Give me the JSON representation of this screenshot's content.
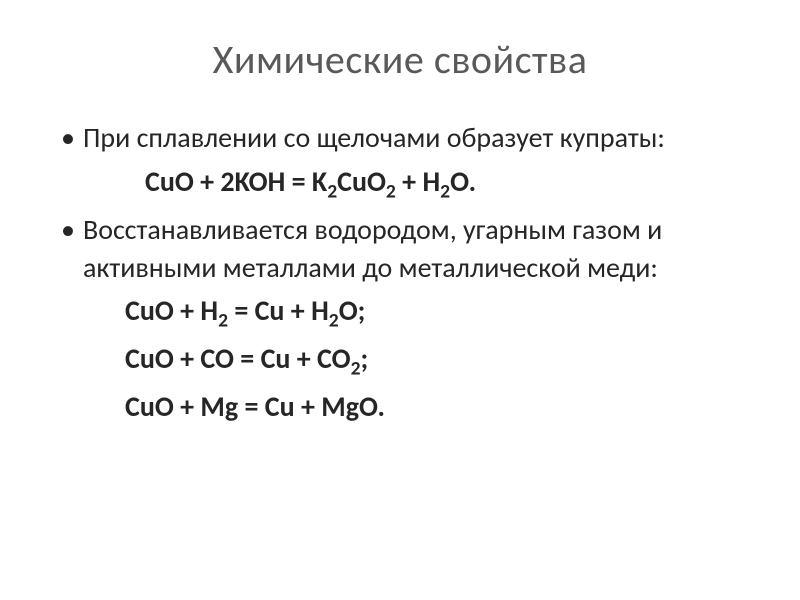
{
  "title": "Химические свойства",
  "bullets": {
    "b1": "При сплавлении со щелочами образует купраты:",
    "b2": "Восстанавливается водородом, угарным газом и активными металлами до металлической меди:"
  },
  "formulas": {
    "f1_lhs1": "CuO",
    "f1_plus1": " + ",
    "f1_lhs2": "2KOH",
    "f1_eq": " = ",
    "f1_rhs1a": "K",
    "f1_rhs1a_sub": "2",
    "f1_rhs1b": "CuO",
    "f1_rhs1b_sub": "2",
    "f1_plus2": " + ",
    "f1_rhs2a": "H",
    "f1_rhs2a_sub": "2",
    "f1_rhs2b": "O",
    "f1_end": ".",
    "f2_lhs1": "CuO",
    "f2_plus1": " + ",
    "f2_lhs2a": "H",
    "f2_lhs2a_sub": "2",
    "f2_eq": " = ",
    "f2_rhs1": "Cu",
    "f2_plus2": " + ",
    "f2_rhs2a": "H",
    "f2_rhs2a_sub": "2",
    "f2_rhs2b": "O",
    "f2_end": ";",
    "f3_lhs1": "CuO",
    "f3_plus1": " + ",
    "f3_lhs2": "CO",
    "f3_eq": " = ",
    "f3_rhs1": "Cu",
    "f3_plus2": " + ",
    "f3_rhs2a": "CO",
    "f3_rhs2a_sub": "2",
    "f3_end": ";",
    "f4_lhs1": "CuO",
    "f4_plus1": " + ",
    "f4_lhs2": "Mg",
    "f4_eq": " = ",
    "f4_rhs1": "Cu",
    "f4_plus2": " + ",
    "f4_rhs2": "MgO",
    "f4_end": "."
  },
  "style": {
    "background_color": "#ffffff",
    "title_color": "#595959",
    "text_color": "#262626",
    "title_fontsize": 40,
    "body_fontsize": 28,
    "font_family": "Calibri, Arial, sans-serif",
    "formula_weight": 700,
    "bullet_weight": 400
  }
}
